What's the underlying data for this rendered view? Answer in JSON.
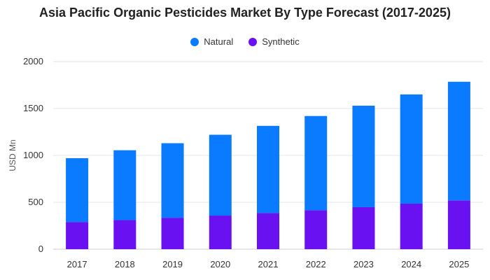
{
  "chart_data": {
    "type": "bar",
    "stacked": true,
    "title": "Asia Pacific Organic Pesticides Market By Type Forecast (2017-2025)",
    "xlabel": "",
    "ylabel": "USD Mn",
    "categories": [
      "2017",
      "2018",
      "2019",
      "2020",
      "2021",
      "2022",
      "2023",
      "2024",
      "2025"
    ],
    "series": [
      {
        "name": "Synthetic",
        "color": "#6a11f2",
        "values": [
          290,
          310,
          335,
          358,
          385,
          415,
          448,
          485,
          520
        ]
      },
      {
        "name": "Natural",
        "color": "#0a7bff",
        "values": [
          680,
          745,
          795,
          862,
          930,
          1005,
          1082,
          1165,
          1265
        ]
      }
    ],
    "legend_order": [
      "Natural",
      "Synthetic"
    ],
    "ylim": [
      0,
      2000
    ],
    "yticks": [
      0,
      500,
      1000,
      1500,
      2000
    ],
    "grid": true,
    "legend_position": "top-center"
  }
}
